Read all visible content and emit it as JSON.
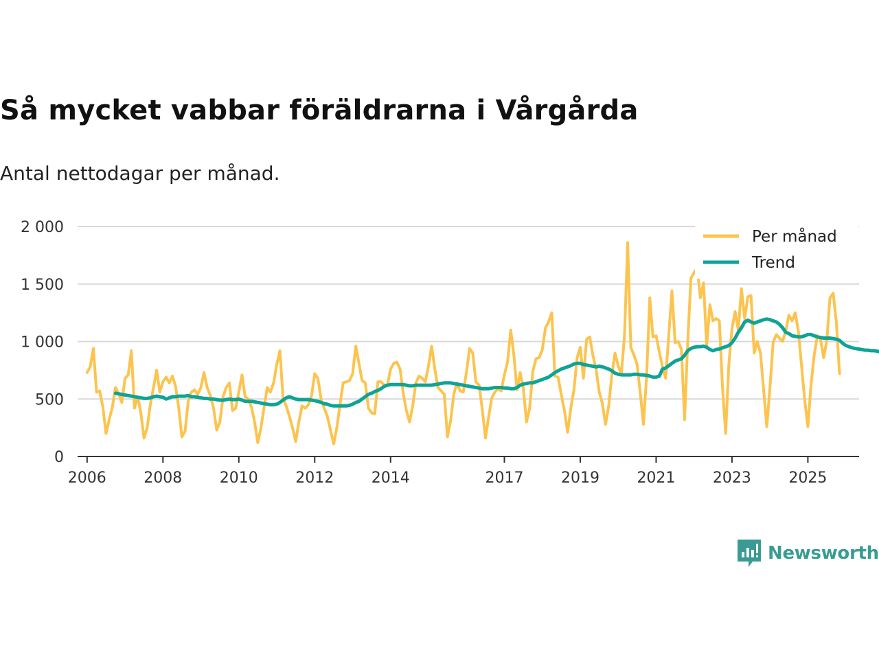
{
  "title": "Så mycket vabbar föräldrarna i Vårgårda",
  "subtitle": "Antal nettodagar per månad.",
  "brand": "Newsworthy",
  "colors": {
    "per_month": "#fcc44f",
    "trend": "#0fa396",
    "grid": "#d9d9d9",
    "axis": "#333333"
  },
  "chart_data": {
    "type": "line",
    "title": "Så mycket vabbar föräldrarna i Vårgårda",
    "subtitle": "Antal nettodagar per månad.",
    "xlabel": "",
    "ylabel": "",
    "x_ticks": [
      "2006",
      "2008",
      "2010",
      "2012",
      "2014",
      "2017",
      "2019",
      "2021",
      "2023",
      "2025"
    ],
    "x_tick_values": [
      2006,
      2008,
      2010,
      2012,
      2014,
      2017,
      2019,
      2021,
      2023,
      2025
    ],
    "y_ticks": [
      "0",
      "500",
      "1 000",
      "1 500",
      "2 000"
    ],
    "y_tick_values": [
      0,
      500,
      1000,
      1500,
      2000
    ],
    "ylim": [
      0,
      2000
    ],
    "xlim": [
      2005.75,
      2026.35
    ],
    "grid": true,
    "legend_position": "top-right",
    "series": [
      {
        "name": "Per månad",
        "color": "#fcc44f",
        "start_year": 2006,
        "start_month": 1,
        "values": [
          730,
          780,
          940,
          560,
          570,
          430,
          200,
          320,
          430,
          600,
          550,
          470,
          680,
          710,
          920,
          420,
          520,
          380,
          160,
          250,
          450,
          600,
          750,
          560,
          650,
          690,
          640,
          700,
          610,
          420,
          170,
          220,
          480,
          560,
          580,
          540,
          600,
          730,
          600,
          530,
          420,
          230,
          300,
          520,
          600,
          640,
          400,
          420,
          560,
          710,
          520,
          500,
          430,
          300,
          120,
          250,
          430,
          600,
          560,
          640,
          800,
          920,
          510,
          440,
          350,
          250,
          130,
          300,
          440,
          420,
          450,
          530,
          720,
          680,
          500,
          420,
          350,
          230,
          110,
          250,
          450,
          640,
          650,
          660,
          720,
          960,
          810,
          660,
          640,
          420,
          380,
          370,
          650,
          650,
          620,
          620,
          760,
          810,
          820,
          760,
          550,
          400,
          300,
          440,
          640,
          700,
          680,
          650,
          790,
          960,
          760,
          600,
          570,
          540,
          170,
          310,
          540,
          640,
          570,
          560,
          730,
          940,
          900,
          650,
          620,
          410,
          160,
          340,
          510,
          560,
          590,
          570,
          710,
          820,
          1100,
          880,
          580,
          730,
          590,
          300,
          420,
          740,
          850,
          860,
          930,
          1120,
          1170,
          1250,
          700,
          690,
          540,
          400,
          210,
          420,
          580,
          860,
          950,
          680,
          1020,
          1040,
          880,
          760,
          560,
          460,
          280,
          440,
          710,
          900,
          790,
          710,
          1050,
          1860,
          950,
          880,
          800,
          550,
          280,
          700,
          1380,
          1040,
          1050,
          910,
          780,
          680,
          1060,
          1440,
          990,
          1000,
          930,
          320,
          1000,
          1550,
          1600,
          1640,
          1380,
          1510,
          960,
          1320,
          1180,
          1200,
          1180,
          600,
          200,
          800,
          1110,
          1260,
          1100,
          1460,
          1200,
          1390,
          1400,
          900,
          1000,
          900,
          580,
          260,
          600,
          990,
          1060,
          1030,
          1000,
          1090,
          1230,
          1180,
          1250,
          1090,
          790,
          490,
          260,
          620,
          880,
          1050,
          1020,
          860,
          1010,
          1380,
          1420,
          1170,
          720
        ]
      },
      {
        "name": "Trend",
        "color": "#0fa396",
        "start_year": 2006,
        "start_month": 10,
        "values": [
          550,
          545,
          540,
          535,
          530,
          525,
          520,
          515,
          510,
          505,
          505,
          510,
          520,
          525,
          520,
          515,
          500,
          510,
          520,
          520,
          525,
          525,
          525,
          530,
          520,
          520,
          515,
          510,
          505,
          505,
          500,
          500,
          495,
          490,
          490,
          495,
          500,
          495,
          495,
          500,
          490,
          480,
          480,
          480,
          475,
          470,
          465,
          460,
          455,
          450,
          450,
          455,
          470,
          490,
          510,
          520,
          510,
          500,
          495,
          495,
          495,
          495,
          490,
          485,
          480,
          470,
          460,
          455,
          445,
          440,
          440,
          440,
          440,
          440,
          445,
          455,
          470,
          480,
          500,
          520,
          540,
          550,
          565,
          575,
          590,
          610,
          620,
          625,
          625,
          625,
          625,
          625,
          620,
          615,
          615,
          620,
          620,
          620,
          620,
          620,
          620,
          625,
          630,
          635,
          640,
          640,
          640,
          635,
          630,
          625,
          620,
          615,
          610,
          605,
          600,
          595,
          590,
          590,
          590,
          595,
          600,
          600,
          600,
          595,
          595,
          590,
          590,
          600,
          620,
          630,
          635,
          640,
          640,
          650,
          660,
          670,
          680,
          690,
          710,
          730,
          745,
          760,
          770,
          780,
          790,
          805,
          810,
          810,
          800,
          795,
          790,
          785,
          780,
          785,
          780,
          770,
          760,
          745,
          725,
          715,
          710,
          710,
          710,
          710,
          715,
          715,
          710,
          710,
          705,
          700,
          690,
          690,
          700,
          760,
          770,
          790,
          810,
          830,
          840,
          850,
          880,
          920,
          940,
          950,
          955,
          955,
          960,
          950,
          930,
          920,
          930,
          935,
          945,
          955,
          965,
          990,
          1030,
          1080,
          1120,
          1170,
          1185,
          1170,
          1160,
          1170,
          1180,
          1190,
          1195,
          1190,
          1180,
          1170,
          1150,
          1120,
          1080,
          1070,
          1050,
          1045,
          1040,
          1040,
          1050,
          1060,
          1060,
          1050,
          1040,
          1035,
          1030,
          1030,
          1030,
          1025,
          1020,
          1010,
          985,
          965,
          955,
          945,
          940,
          935,
          930,
          925,
          925,
          920,
          920,
          915,
          910,
          910,
          905,
          910,
          920,
          930,
          920,
          905,
          900
        ]
      }
    ]
  }
}
